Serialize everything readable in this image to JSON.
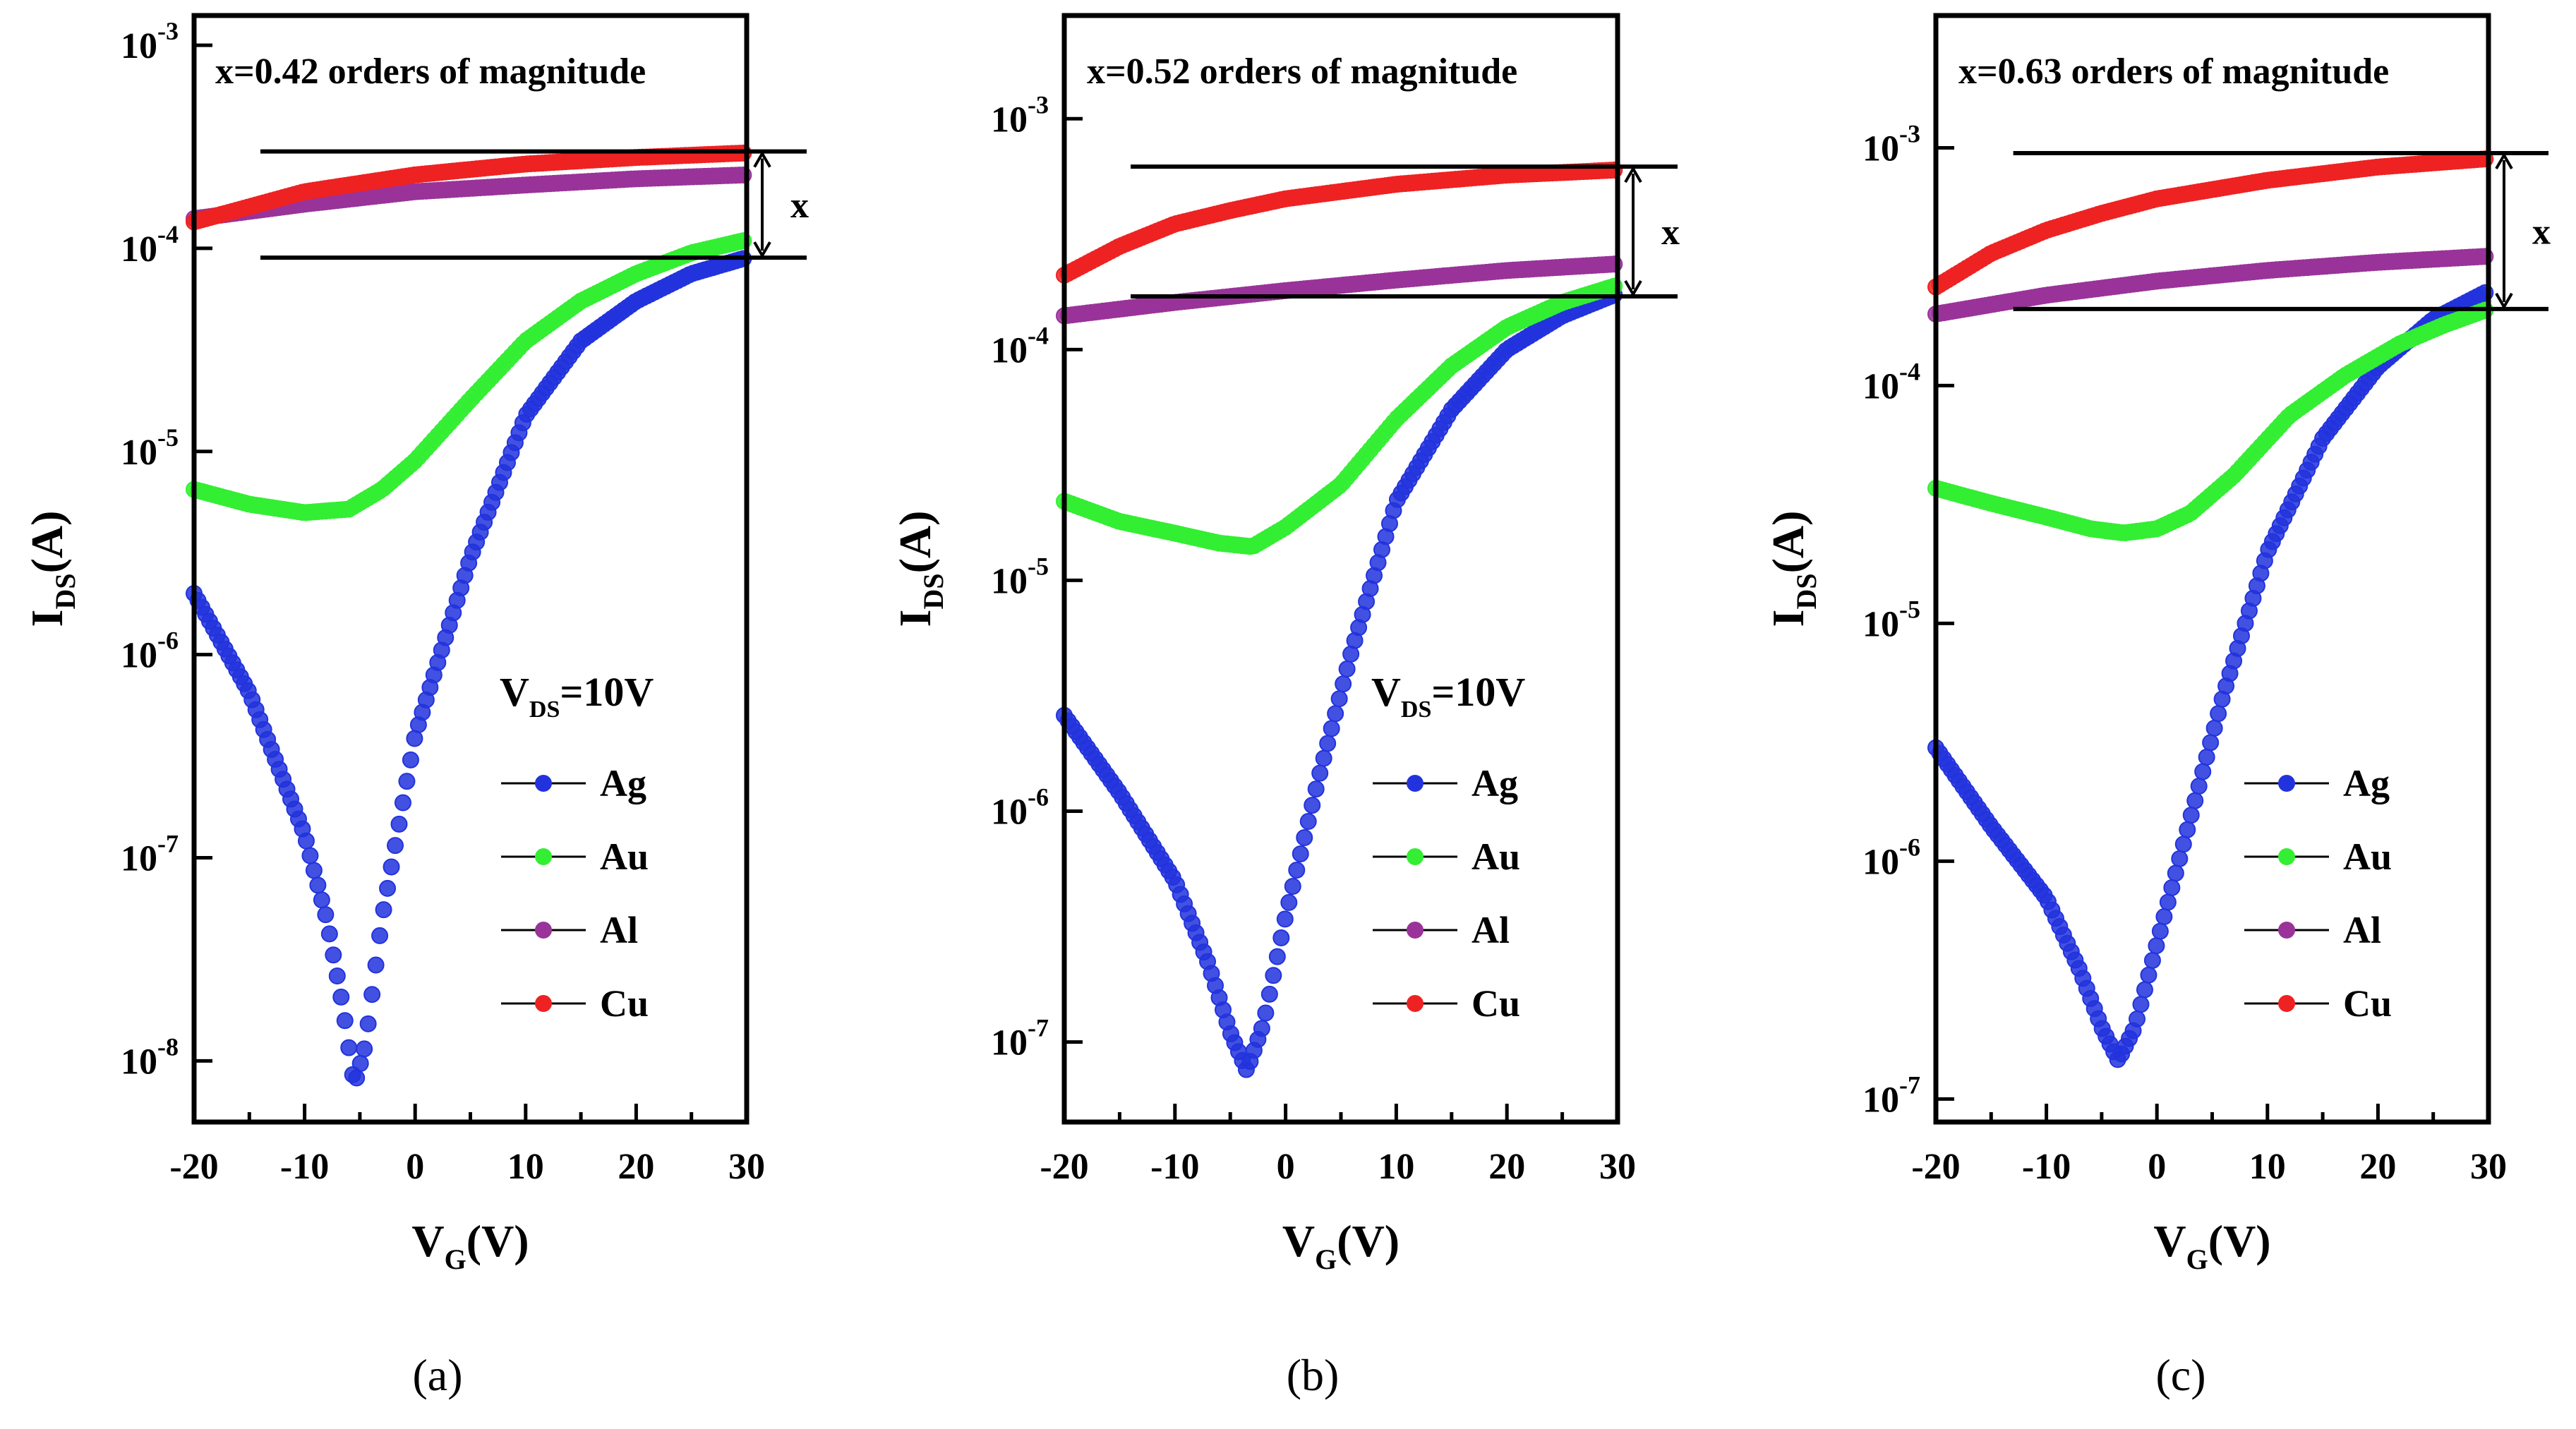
{
  "figure": {
    "panels": [
      {
        "label": "(a)",
        "annotation": "x=0.42 orders of magnitude",
        "x_marker": "x",
        "vds": {
          "main": "V",
          "sub": "DS",
          "rest": "=10V"
        },
        "ylabel": {
          "main": "I",
          "sub": "DS",
          "rest": "(A)"
        },
        "xlabel": {
          "main": "V",
          "sub": "G",
          "rest": "(V)"
        },
        "chart_data": {
          "type": "line",
          "yscale": "log",
          "xlim": [
            -20,
            30
          ],
          "ylim": [
            5e-09,
            0.0014
          ],
          "xticks": [
            -20,
            -10,
            0,
            10,
            20,
            30
          ],
          "xtick_labels": [
            "-20",
            "-10",
            "0",
            "10",
            "20",
            "30"
          ],
          "yticks": [
            1e-08,
            1e-07,
            1e-06,
            1e-05,
            0.0001,
            0.001
          ],
          "ytick_labels": [
            {
              "base": "10",
              "exp": "-8"
            },
            {
              "base": "10",
              "exp": "-7"
            },
            {
              "base": "10",
              "exp": "-6"
            },
            {
              "base": "10",
              "exp": "-5"
            },
            {
              "base": "10",
              "exp": "-4"
            },
            {
              "base": "10",
              "exp": "-3"
            }
          ],
          "ref_lines": {
            "upper": 0.0003,
            "lower": 9e-05,
            "x_start": -14
          },
          "series": [
            {
              "name": "Ag",
              "color": "#2233dd",
              "points": [
                [
                  -20,
                  2e-06
                ],
                [
                  -15,
                  6.5e-07
                ],
                [
                  -10,
                  1.3e-07
                ],
                [
                  -8,
                  5e-08
                ],
                [
                  -6.5,
                  1.8e-08
                ],
                [
                  -5.5,
                  7.5e-09
                ],
                [
                  -4.5,
                  1.2e-08
                ],
                [
                  -3,
                  5e-08
                ],
                [
                  0,
                  4e-07
                ],
                [
                  5,
                  3e-06
                ],
                [
                  10,
                  1.5e-05
                ],
                [
                  15,
                  3.5e-05
                ],
                [
                  20,
                  5.5e-05
                ],
                [
                  25,
                  7.5e-05
                ],
                [
                  30,
                  9e-05
                ]
              ]
            },
            {
              "name": "Au",
              "color": "#33ee33",
              "points": [
                [
                  -20,
                  6.5e-06
                ],
                [
                  -15,
                  5.5e-06
                ],
                [
                  -10,
                  5e-06
                ],
                [
                  -6,
                  5.2e-06
                ],
                [
                  -3,
                  6.5e-06
                ],
                [
                  0,
                  9e-06
                ],
                [
                  5,
                  1.8e-05
                ],
                [
                  10,
                  3.5e-05
                ],
                [
                  15,
                  5.5e-05
                ],
                [
                  20,
                  7.5e-05
                ],
                [
                  25,
                  9.5e-05
                ],
                [
                  30,
                  0.00011
                ]
              ]
            },
            {
              "name": "Al",
              "color": "#993399",
              "points": [
                [
                  -20,
                  0.00014
                ],
                [
                  -10,
                  0.000165
                ],
                [
                  0,
                  0.00019
                ],
                [
                  10,
                  0.000205
                ],
                [
                  20,
                  0.00022
                ],
                [
                  30,
                  0.00023
                ]
              ]
            },
            {
              "name": "Cu",
              "color": "#ee2222",
              "points": [
                [
                  -20,
                  0.000135
                ],
                [
                  -10,
                  0.00019
                ],
                [
                  0,
                  0.00023
                ],
                [
                  10,
                  0.00026
                ],
                [
                  20,
                  0.00028
                ],
                [
                  30,
                  0.000295
                ]
              ]
            }
          ]
        }
      },
      {
        "label": "(b)",
        "annotation": "x=0.52 orders of magnitude",
        "x_marker": "x",
        "vds": {
          "main": "V",
          "sub": "DS",
          "rest": "=10V"
        },
        "ylabel": {
          "main": "I",
          "sub": "DS",
          "rest": "(A)"
        },
        "xlabel": {
          "main": "V",
          "sub": "G",
          "rest": "(V)"
        },
        "chart_data": {
          "type": "line",
          "yscale": "log",
          "xlim": [
            -20,
            30
          ],
          "ylim": [
            4.5e-08,
            0.0028
          ],
          "xticks": [
            -20,
            -10,
            0,
            10,
            20,
            30
          ],
          "xtick_labels": [
            "-20",
            "-10",
            "0",
            "10",
            "20",
            "30"
          ],
          "yticks": [
            1e-07,
            1e-06,
            1e-05,
            0.0001,
            0.001
          ],
          "ytick_labels": [
            {
              "base": "10",
              "exp": "-7"
            },
            {
              "base": "10",
              "exp": "-6"
            },
            {
              "base": "10",
              "exp": "-5"
            },
            {
              "base": "10",
              "exp": "-4"
            },
            {
              "base": "10",
              "exp": "-3"
            }
          ],
          "ref_lines": {
            "upper": 0.00062,
            "lower": 0.00017,
            "x_start": -14
          },
          "series": [
            {
              "name": "Ag",
              "color": "#2233dd",
              "points": [
                [
                  -20,
                  2.6e-06
                ],
                [
                  -15,
                  1.2e-06
                ],
                [
                  -10,
                  5e-07
                ],
                [
                  -7,
                  2.2e-07
                ],
                [
                  -5,
                  1.1e-07
                ],
                [
                  -3.5,
                  7.5e-08
                ],
                [
                  -2,
                  1.2e-07
                ],
                [
                  0,
                  3.5e-07
                ],
                [
                  3,
                  1.4e-06
                ],
                [
                  6,
                  5e-06
                ],
                [
                  10,
                  2.2e-05
                ],
                [
                  15,
                  5.5e-05
                ],
                [
                  20,
                  0.0001
                ],
                [
                  25,
                  0.00014
                ],
                [
                  30,
                  0.000175
                ]
              ]
            },
            {
              "name": "Au",
              "color": "#33ee33",
              "points": [
                [
                  -20,
                  2.2e-05
                ],
                [
                  -15,
                  1.8e-05
                ],
                [
                  -10,
                  1.6e-05
                ],
                [
                  -6,
                  1.45e-05
                ],
                [
                  -3,
                  1.4e-05
                ],
                [
                  0,
                  1.7e-05
                ],
                [
                  5,
                  2.6e-05
                ],
                [
                  10,
                  5e-05
                ],
                [
                  15,
                  8.5e-05
                ],
                [
                  20,
                  0.000125
                ],
                [
                  25,
                  0.00016
                ],
                [
                  30,
                  0.00019
                ]
              ]
            },
            {
              "name": "Al",
              "color": "#993399",
              "points": [
                [
                  -20,
                  0.00014
                ],
                [
                  -10,
                  0.00016
                ],
                [
                  0,
                  0.00018
                ],
                [
                  10,
                  0.0002
                ],
                [
                  20,
                  0.00022
                ],
                [
                  30,
                  0.000235
                ]
              ]
            },
            {
              "name": "Cu",
              "color": "#ee2222",
              "points": [
                [
                  -20,
                  0.00021
                ],
                [
                  -15,
                  0.00028
                ],
                [
                  -10,
                  0.00035
                ],
                [
                  -5,
                  0.0004
                ],
                [
                  0,
                  0.00045
                ],
                [
                  10,
                  0.00052
                ],
                [
                  20,
                  0.00057
                ],
                [
                  30,
                  0.0006
                ]
              ]
            }
          ]
        }
      },
      {
        "label": "(c)",
        "annotation": "x=0.63 orders of magnitude",
        "x_marker": "x",
        "vds": null,
        "ylabel": {
          "main": "I",
          "sub": "DS",
          "rest": "(A)"
        },
        "xlabel": {
          "main": "V",
          "sub": "G",
          "rest": "(V)"
        },
        "chart_data": {
          "type": "line",
          "yscale": "log",
          "xlim": [
            -20,
            30
          ],
          "ylim": [
            8e-08,
            0.0036
          ],
          "xticks": [
            -20,
            -10,
            0,
            10,
            20,
            30
          ],
          "xtick_labels": [
            "-20",
            "-10",
            "0",
            "10",
            "20",
            "30"
          ],
          "yticks": [
            1e-07,
            1e-06,
            1e-05,
            0.0001,
            0.001
          ],
          "ytick_labels": [
            {
              "base": "10",
              "exp": "-7"
            },
            {
              "base": "10",
              "exp": "-6"
            },
            {
              "base": "10",
              "exp": "-5"
            },
            {
              "base": "10",
              "exp": "-4"
            },
            {
              "base": "10",
              "exp": "-3"
            }
          ],
          "ref_lines": {
            "upper": 0.00095,
            "lower": 0.00021,
            "x_start": -13
          },
          "series": [
            {
              "name": "Ag",
              "color": "#2233dd",
              "points": [
                [
                  -20,
                  3e-06
                ],
                [
                  -15,
                  1.4e-06
                ],
                [
                  -10,
                  7e-07
                ],
                [
                  -7,
                  3.5e-07
                ],
                [
                  -5,
                  2e-07
                ],
                [
                  -3.5,
                  1.45e-07
                ],
                [
                  -2,
                  2e-07
                ],
                [
                  0,
                  4.5e-07
                ],
                [
                  3,
                  1.5e-06
                ],
                [
                  6,
                  5e-06
                ],
                [
                  10,
                  2e-05
                ],
                [
                  15,
                  6e-05
                ],
                [
                  20,
                  0.00012
                ],
                [
                  25,
                  0.00019
                ],
                [
                  30,
                  0.00025
                ]
              ]
            },
            {
              "name": "Au",
              "color": "#33ee33",
              "points": [
                [
                  -20,
                  3.7e-05
                ],
                [
                  -15,
                  3.2e-05
                ],
                [
                  -10,
                  2.8e-05
                ],
                [
                  -6,
                  2.5e-05
                ],
                [
                  -3,
                  2.4e-05
                ],
                [
                  0,
                  2.5e-05
                ],
                [
                  3,
                  2.9e-05
                ],
                [
                  7,
                  4.2e-05
                ],
                [
                  12,
                  7.5e-05
                ],
                [
                  17,
                  0.00011
                ],
                [
                  22,
                  0.00015
                ],
                [
                  26,
                  0.00018
                ],
                [
                  30,
                  0.00021
                ]
              ]
            },
            {
              "name": "Al",
              "color": "#993399",
              "points": [
                [
                  -20,
                  0.0002
                ],
                [
                  -10,
                  0.00024
                ],
                [
                  0,
                  0.000275
                ],
                [
                  10,
                  0.000305
                ],
                [
                  20,
                  0.00033
                ],
                [
                  30,
                  0.00035
                ]
              ]
            },
            {
              "name": "Cu",
              "color": "#ee2222",
              "points": [
                [
                  -20,
                  0.00026
                ],
                [
                  -15,
                  0.00036
                ],
                [
                  -10,
                  0.00045
                ],
                [
                  -5,
                  0.00053
                ],
                [
                  0,
                  0.00061
                ],
                [
                  10,
                  0.00073
                ],
                [
                  20,
                  0.00083
                ],
                [
                  30,
                  0.0009
                ]
              ]
            }
          ]
        }
      }
    ]
  }
}
